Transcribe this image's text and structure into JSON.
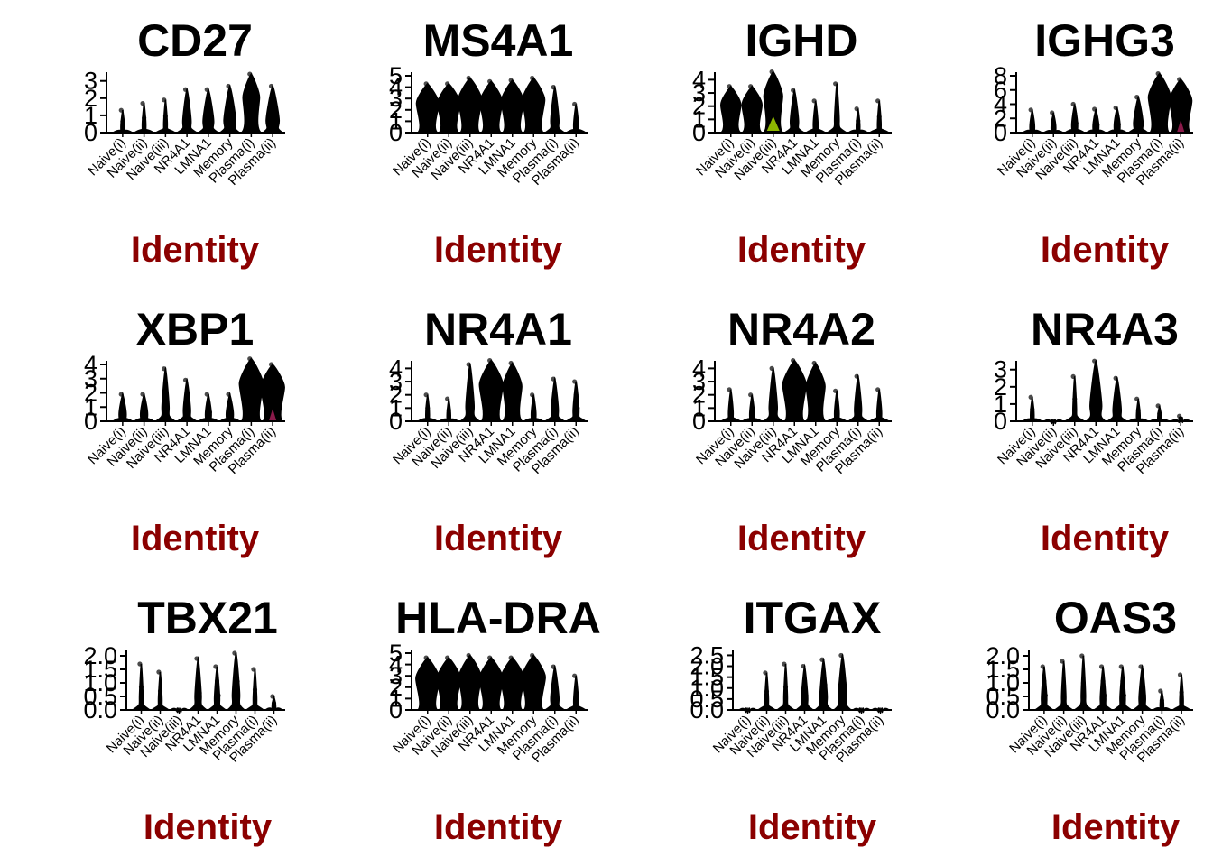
{
  "colors": {
    "violin": "#000000",
    "axis": "#000000",
    "axis_title": "#8b0000",
    "accent_ighd": "#8db600",
    "accent_plasma": "#8b1a4a"
  },
  "chart_data": [
    {
      "type": "violin",
      "title": "CD27",
      "xlabel": "Identity",
      "ylabel": "",
      "ylim": [
        0,
        3.3
      ],
      "yticks": [
        0,
        1,
        2,
        3
      ],
      "categories": [
        "Naive(i)",
        "Naive(ii)",
        "Naive(iii)",
        "NR4A1",
        "LMNA1",
        "Memory",
        "Plasma(i)",
        "Plasma(ii)"
      ],
      "max_values": [
        1.3,
        1.7,
        1.9,
        2.5,
        2.5,
        2.7,
        3.4,
        2.7
      ],
      "spread": [
        0.1,
        0.15,
        0.15,
        0.35,
        0.45,
        0.5,
        0.7,
        0.55
      ]
    },
    {
      "type": "violin",
      "title": "MS4A1",
      "xlabel": "Identity",
      "ylabel": "",
      "ylim": [
        0,
        5
      ],
      "yticks": [
        0,
        1,
        2,
        3,
        4,
        5
      ],
      "categories": [
        "Naive(i)",
        "Naive(ii)",
        "Naive(iii)",
        "NR4A1",
        "LMNA1",
        "Memory",
        "Plasma(i)",
        "Plasma(ii)"
      ],
      "max_values": [
        4.3,
        4.3,
        4.8,
        4.5,
        4.6,
        4.8,
        4.0,
        2.5
      ],
      "spread": [
        0.95,
        0.95,
        1.0,
        0.95,
        0.95,
        0.95,
        0.35,
        0.2
      ]
    },
    {
      "type": "violin",
      "title": "IGHD",
      "xlabel": "Identity",
      "ylabel": "",
      "ylim": [
        0,
        4.3
      ],
      "yticks": [
        0,
        1,
        2,
        3,
        4
      ],
      "categories": [
        "Naive(i)",
        "Naive(ii)",
        "Naive(iii)",
        "NR4A1",
        "LMNA1",
        "Memory",
        "Plasma(i)",
        "Plasma(ii)"
      ],
      "max_values": [
        3.5,
        3.5,
        4.6,
        3.2,
        2.4,
        3.7,
        1.8,
        2.4
      ],
      "spread": [
        0.85,
        0.85,
        0.8,
        0.35,
        0.2,
        0.2,
        0.15,
        0.15
      ]
    },
    {
      "type": "violin",
      "title": "IGHG3",
      "xlabel": "Identity",
      "ylabel": "",
      "ylim": [
        0,
        8
      ],
      "yticks": [
        0,
        2,
        4,
        6,
        8
      ],
      "categories": [
        "Naive(i)",
        "Naive(ii)",
        "Naive(iii)",
        "NR4A1",
        "LMNA1",
        "Memory",
        "Plasma(i)",
        "Plasma(ii)"
      ],
      "max_values": [
        3.2,
        2.8,
        4.0,
        3.3,
        3.5,
        5.0,
        8.3,
        7.5
      ],
      "spread": [
        0.2,
        0.2,
        0.25,
        0.25,
        0.25,
        0.4,
        0.95,
        0.95
      ]
    },
    {
      "type": "violin",
      "title": "XBP1",
      "xlabel": "Identity",
      "ylabel": "",
      "ylim": [
        0,
        4
      ],
      "yticks": [
        0,
        1,
        2,
        3,
        4
      ],
      "categories": [
        "Naive(i)",
        "Naive(ii)",
        "Naive(iii)",
        "NR4A1",
        "LMNA1",
        "Memory",
        "Plasma(i)",
        "Plasma(ii)"
      ],
      "max_values": [
        1.9,
        1.9,
        3.7,
        2.9,
        1.9,
        1.9,
        4.4,
        4.0
      ],
      "spread": [
        0.3,
        0.3,
        0.3,
        0.3,
        0.25,
        0.3,
        1.0,
        1.0
      ]
    },
    {
      "type": "violin",
      "title": "NR4A1",
      "xlabel": "Identity",
      "ylabel": "",
      "ylim": [
        0,
        4.3
      ],
      "yticks": [
        0,
        1,
        2,
        3,
        4
      ],
      "categories": [
        "Naive(i)",
        "Naive(ii)",
        "Naive(iii)",
        "NR4A1",
        "LMNA1",
        "Memory",
        "Plasma(i)",
        "Plasma(ii)"
      ],
      "max_values": [
        2.0,
        1.7,
        4.3,
        4.6,
        4.4,
        2.0,
        3.2,
        3.0
      ],
      "spread": [
        0.15,
        0.15,
        0.35,
        1.0,
        0.8,
        0.2,
        0.3,
        0.25
      ]
    },
    {
      "type": "violin",
      "title": "NR4A2",
      "xlabel": "Identity",
      "ylabel": "",
      "ylim": [
        0,
        4.3
      ],
      "yticks": [
        0,
        1,
        2,
        3,
        4
      ],
      "categories": [
        "Naive(i)",
        "Naive(ii)",
        "Naive(iii)",
        "NR4A1",
        "LMNA1",
        "Memory",
        "Plasma(i)",
        "Plasma(ii)"
      ],
      "max_values": [
        2.4,
        2.0,
        4.0,
        4.6,
        4.4,
        2.3,
        3.4,
        2.4
      ],
      "spread": [
        0.2,
        0.2,
        0.35,
        1.0,
        0.8,
        0.2,
        0.3,
        0.2
      ]
    },
    {
      "type": "violin",
      "title": "NR4A3",
      "xlabel": "Identity",
      "ylabel": "",
      "ylim": [
        0,
        3.3
      ],
      "yticks": [
        0,
        1,
        2,
        3
      ],
      "categories": [
        "Naive(i)",
        "Naive(ii)",
        "Naive(iii)",
        "NR4A1",
        "LMNA1",
        "Memory",
        "Plasma(i)",
        "Plasma(ii)"
      ],
      "max_values": [
        1.4,
        0.0,
        2.6,
        3.5,
        2.5,
        1.3,
        0.9,
        0.3
      ],
      "spread": [
        0.05,
        0.02,
        0.15,
        0.5,
        0.35,
        0.1,
        0.1,
        0.05
      ]
    },
    {
      "type": "violin",
      "title": "TBX21",
      "xlabel": "Identity",
      "ylabel": "",
      "ylim": [
        0,
        2.1
      ],
      "yticks": [
        0.0,
        0.5,
        1.0,
        1.5,
        2.0
      ],
      "categories": [
        "Naive(i)",
        "Naive(ii)",
        "Naive(iii)",
        "NR4A1",
        "LMNA1",
        "Memory",
        "Plasma(i)",
        "Plasma(ii)"
      ],
      "max_values": [
        1.7,
        1.4,
        0.0,
        1.9,
        1.6,
        2.1,
        1.5,
        0.5
      ],
      "spread": [
        0.05,
        0.05,
        0.02,
        0.3,
        0.25,
        0.35,
        0.15,
        0.05
      ]
    },
    {
      "type": "violin",
      "title": "HLA-DRA",
      "xlabel": "Identity",
      "ylabel": "",
      "ylim": [
        0,
        5
      ],
      "yticks": [
        0,
        1,
        2,
        3,
        4,
        5
      ],
      "categories": [
        "Naive(i)",
        "Naive(ii)",
        "Naive(iii)",
        "NR4A1",
        "LMNA1",
        "Memory",
        "Plasma(i)",
        "Plasma(ii)"
      ],
      "max_values": [
        4.6,
        4.6,
        4.8,
        4.6,
        4.6,
        4.8,
        3.8,
        3.0
      ],
      "spread": [
        1.0,
        1.0,
        0.95,
        1.0,
        1.0,
        1.0,
        0.35,
        0.2
      ]
    },
    {
      "type": "violin",
      "title": "ITGAX",
      "xlabel": "Identity",
      "ylabel": "",
      "ylim": [
        0,
        2.6
      ],
      "yticks": [
        0.0,
        0.5,
        1.0,
        1.5,
        2.0,
        2.5
      ],
      "categories": [
        "Naive(i)",
        "Naive(ii)",
        "Naive(iii)",
        "NR4A1",
        "LMNA1",
        "Memory",
        "Plasma(i)",
        "Plasma(ii)"
      ],
      "max_values": [
        0.0,
        1.7,
        2.1,
        2.0,
        2.3,
        2.5,
        0.0,
        0.0
      ],
      "spread": [
        0.02,
        0.05,
        0.1,
        0.3,
        0.35,
        0.4,
        0.02,
        0.02
      ]
    },
    {
      "type": "violin",
      "title": "OAS3",
      "xlabel": "Identity",
      "ylabel": "",
      "ylim": [
        0,
        2.1
      ],
      "yticks": [
        0.0,
        0.5,
        1.0,
        1.5,
        2.0
      ],
      "categories": [
        "Naive(i)",
        "Naive(ii)",
        "Naive(iii)",
        "NR4A1",
        "LMNA1",
        "Memory",
        "Plasma(i)",
        "Plasma(ii)"
      ],
      "max_values": [
        1.6,
        1.8,
        2.0,
        1.6,
        1.6,
        1.6,
        0.7,
        1.3
      ],
      "spread": [
        0.25,
        0.2,
        0.2,
        0.25,
        0.25,
        0.3,
        0.1,
        0.05
      ]
    }
  ]
}
